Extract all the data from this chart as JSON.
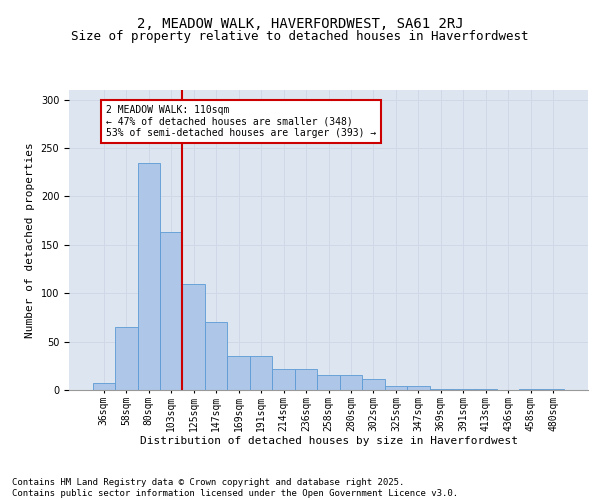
{
  "title1": "2, MEADOW WALK, HAVERFORDWEST, SA61 2RJ",
  "title2": "Size of property relative to detached houses in Haverfordwest",
  "xlabel": "Distribution of detached houses by size in Haverfordwest",
  "ylabel": "Number of detached properties",
  "categories": [
    "36sqm",
    "58sqm",
    "80sqm",
    "103sqm",
    "125sqm",
    "147sqm",
    "169sqm",
    "191sqm",
    "214sqm",
    "236sqm",
    "258sqm",
    "280sqm",
    "302sqm",
    "325sqm",
    "347sqm",
    "369sqm",
    "391sqm",
    "413sqm",
    "436sqm",
    "458sqm",
    "480sqm"
  ],
  "values": [
    7,
    65,
    235,
    163,
    110,
    70,
    35,
    35,
    22,
    22,
    16,
    16,
    11,
    4,
    4,
    1,
    1,
    1,
    0,
    1,
    1
  ],
  "bar_color": "#aec6e8",
  "bar_edge_color": "#5b9bd5",
  "grid_color": "#d0d8e8",
  "background_color": "#dde6f0",
  "vline_color": "#cc0000",
  "annotation_text": "2 MEADOW WALK: 110sqm\n← 47% of detached houses are smaller (348)\n53% of semi-detached houses are larger (393) →",
  "annotation_box_color": "#ffffff",
  "annotation_box_edge": "#cc0000",
  "footer": "Contains HM Land Registry data © Crown copyright and database right 2025.\nContains public sector information licensed under the Open Government Licence v3.0.",
  "ylim": [
    0,
    310
  ],
  "title1_fontsize": 10,
  "title2_fontsize": 9,
  "xlabel_fontsize": 8,
  "ylabel_fontsize": 8,
  "tick_fontsize": 7,
  "annot_fontsize": 7,
  "footer_fontsize": 6.5
}
